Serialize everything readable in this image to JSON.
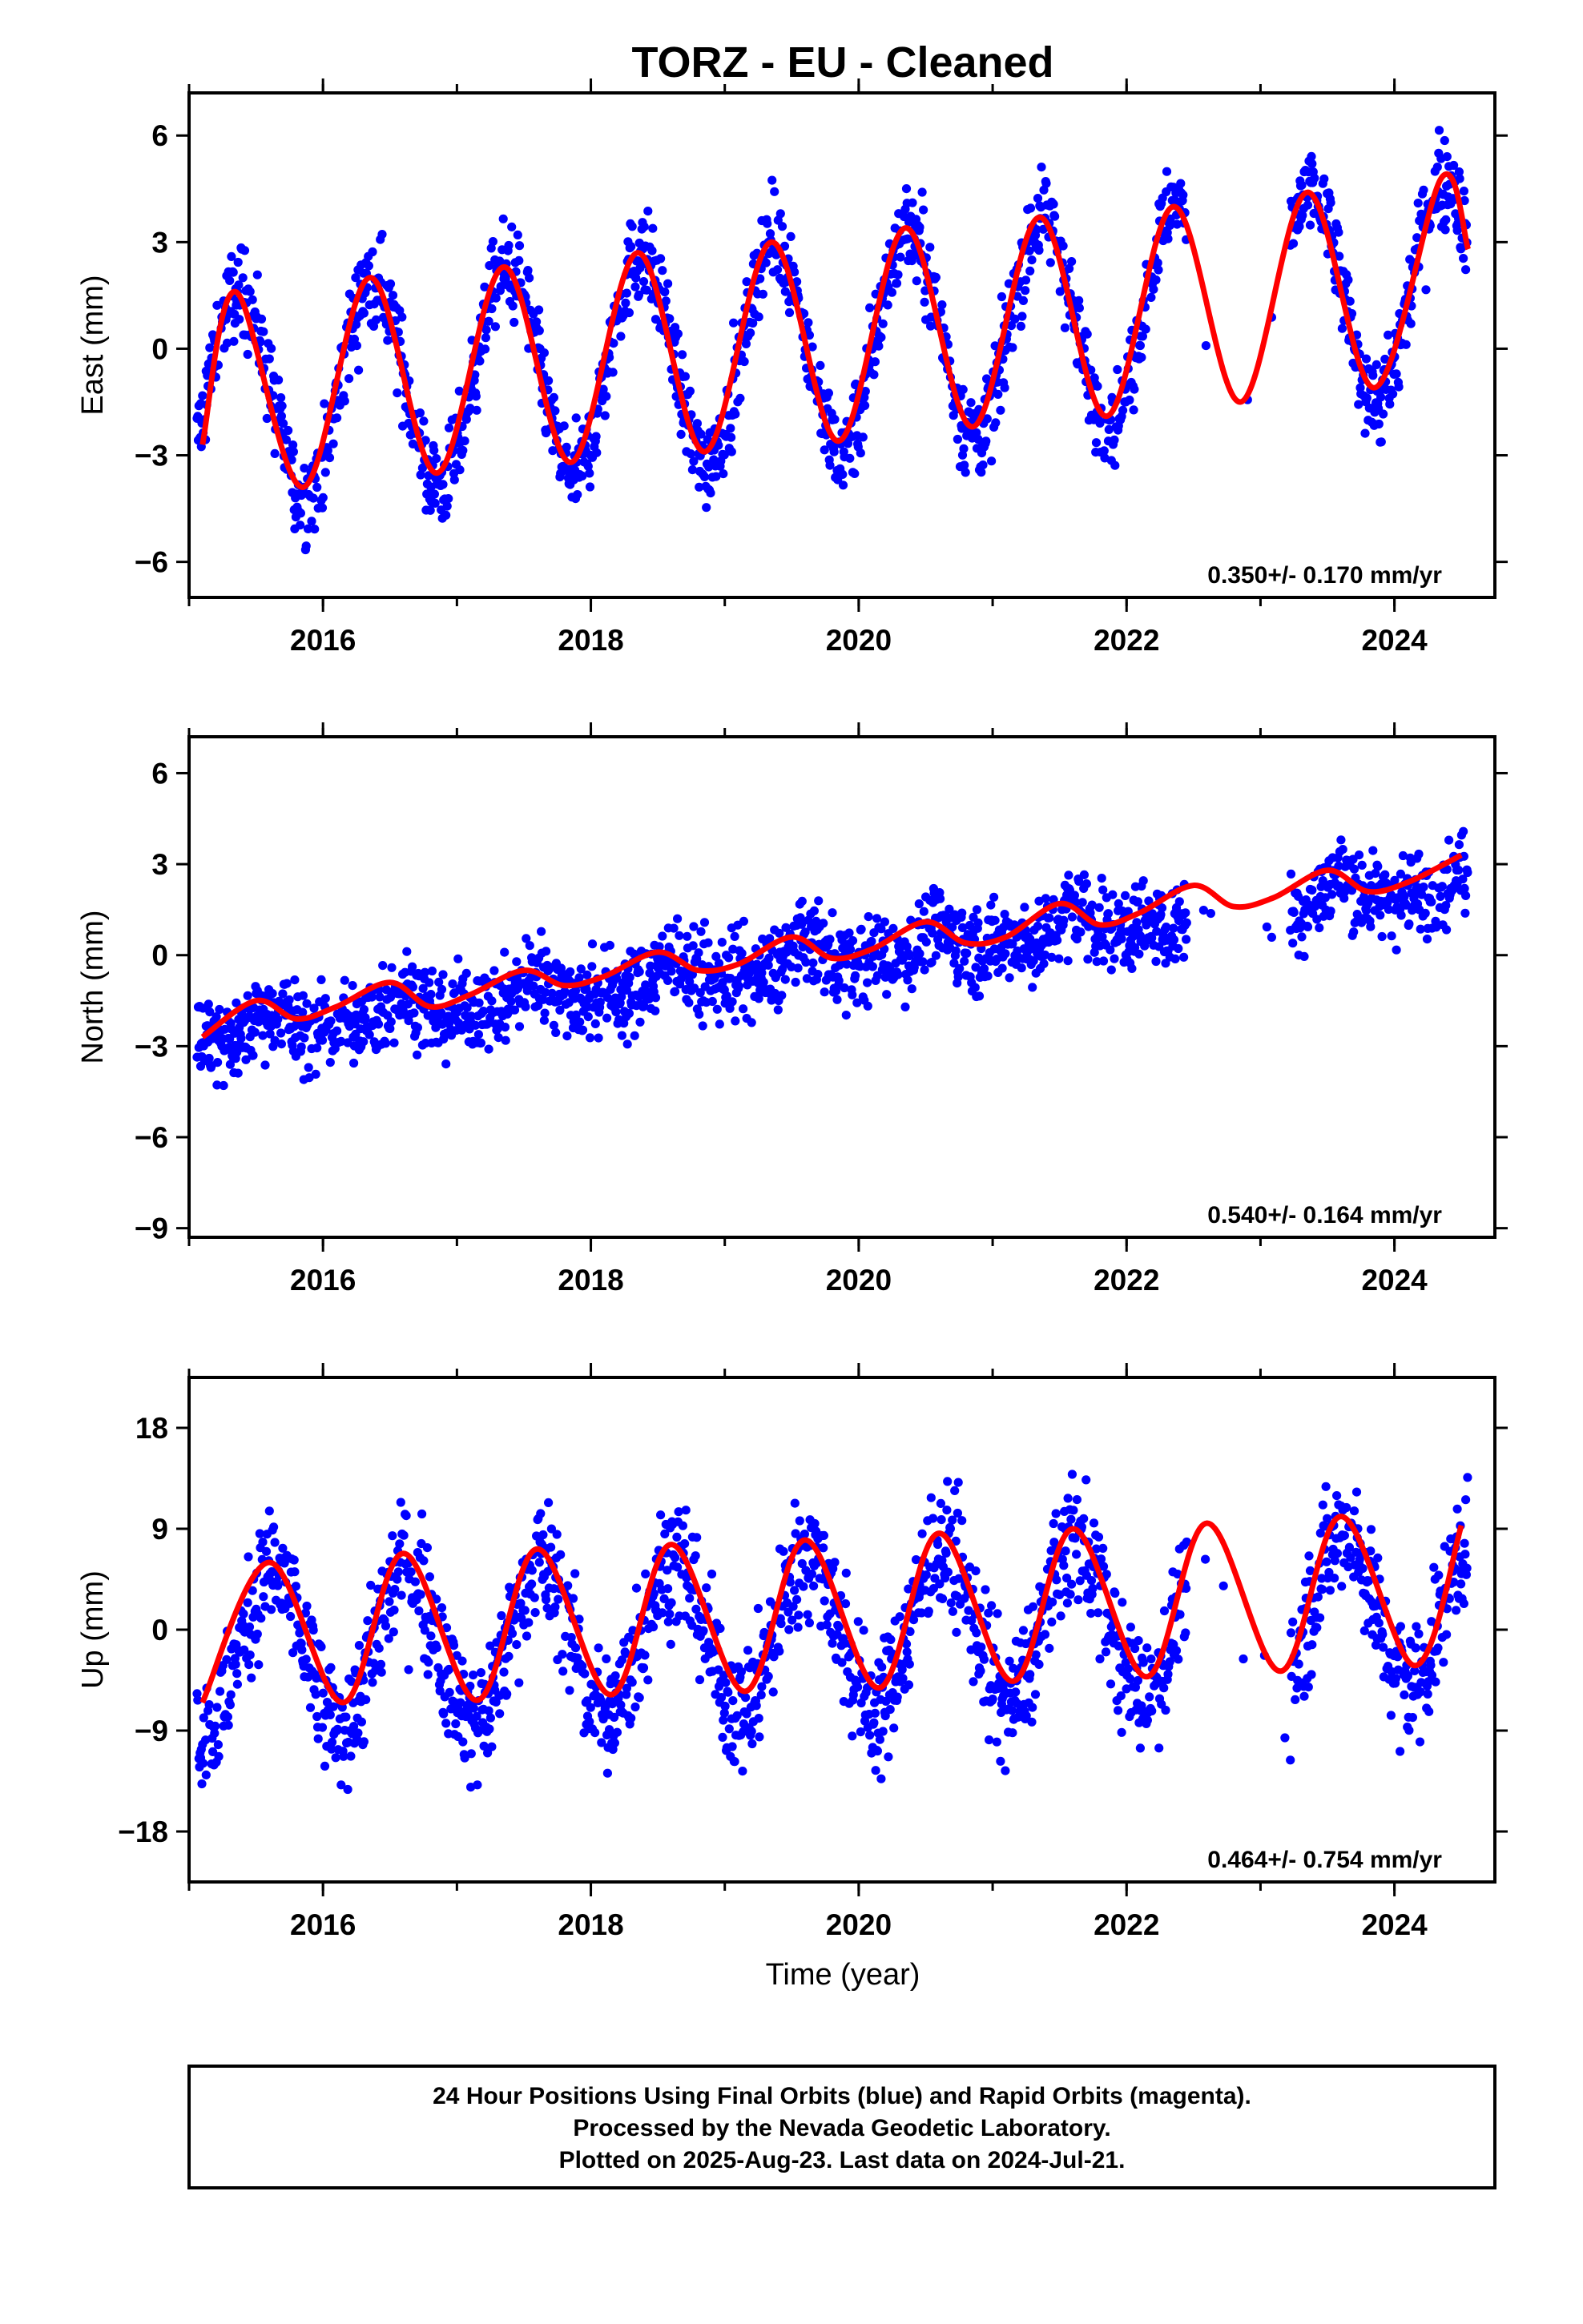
{
  "title": "TORZ  - EU - Cleaned",
  "xlabel": "Time (year)",
  "footer": {
    "line1": "24 Hour Positions Using Final Orbits (blue) and Rapid Orbits (magenta).",
    "line2": "Processed by the Nevada Geodetic Laboratory.",
    "line3": "Plotted on 2025-Aug-23. Last data on 2024-Jul-21."
  },
  "colors": {
    "points": "#0000ff",
    "fit": "#ff0000",
    "axes": "#000000"
  },
  "chart_data": [
    {
      "type": "scatter",
      "ylabel": "East (mm)",
      "xlim": [
        2015.0,
        2024.75
      ],
      "ylim": [
        -7.0,
        7.2
      ],
      "xticks": [
        2016,
        2018,
        2020,
        2022,
        2024
      ],
      "yticks": [
        -6,
        -3,
        0,
        3,
        6
      ],
      "rate_text": "0.350+/- 0.170 mm/yr",
      "model": {
        "rate": 0.35,
        "offset_at_2020": 0.2,
        "annual_amplitude": 3.0,
        "annual_peak": 0.37,
        "semiannual_amplitude": 0.0,
        "noise": 0.9
      },
      "fit": [
        [
          2015.1,
          -2.7
        ],
        [
          2015.35,
          1.6
        ],
        [
          2015.85,
          -3.9
        ],
        [
          2016.35,
          2.0
        ],
        [
          2016.85,
          -3.5
        ],
        [
          2017.35,
          2.3
        ],
        [
          2017.85,
          -3.2
        ],
        [
          2018.35,
          2.7
        ],
        [
          2018.85,
          -2.9
        ],
        [
          2019.35,
          3.0
        ],
        [
          2019.85,
          -2.6
        ],
        [
          2020.35,
          3.4
        ],
        [
          2020.85,
          -2.2
        ],
        [
          2021.35,
          3.7
        ],
        [
          2021.85,
          -1.9
        ],
        [
          2022.35,
          4.0
        ],
        [
          2022.85,
          -1.5
        ],
        [
          2023.35,
          4.4
        ],
        [
          2023.85,
          -1.1
        ],
        [
          2024.35,
          4.8
        ],
        [
          2024.55,
          2.8
        ]
      ]
    },
    {
      "type": "scatter",
      "ylabel": "North (mm)",
      "xlim": [
        2015.0,
        2024.75
      ],
      "ylim": [
        -9.3,
        7.2
      ],
      "xticks": [
        2016,
        2018,
        2020,
        2022,
        2024
      ],
      "yticks": [
        -9,
        -6,
        -3,
        0,
        3,
        6
      ],
      "rate_text": "0.540+/- 0.164 mm/yr",
      "model": {
        "rate": 0.54,
        "offset_at_2020": 0.0,
        "annual_amplitude": 0.4,
        "annual_peak": 0.6,
        "semiannual_amplitude": 0.25,
        "noise": 1.0
      },
      "fit": [
        [
          2015.1,
          -2.7
        ],
        [
          2015.5,
          -1.5
        ],
        [
          2015.8,
          -2.1
        ],
        [
          2016.1,
          -1.7
        ],
        [
          2016.5,
          -0.9
        ],
        [
          2016.8,
          -1.7
        ],
        [
          2017.1,
          -1.3
        ],
        [
          2017.5,
          -0.5
        ],
        [
          2017.8,
          -1.0
        ],
        [
          2018.1,
          -0.7
        ],
        [
          2018.5,
          0.1
        ],
        [
          2018.8,
          -0.5
        ],
        [
          2019.1,
          -0.3
        ],
        [
          2019.5,
          0.6
        ],
        [
          2019.8,
          -0.1
        ],
        [
          2020.1,
          0.2
        ],
        [
          2020.5,
          1.1
        ],
        [
          2020.8,
          0.4
        ],
        [
          2021.1,
          0.6
        ],
        [
          2021.5,
          1.7
        ],
        [
          2021.8,
          1.0
        ],
        [
          2022.1,
          1.4
        ],
        [
          2022.5,
          2.3
        ],
        [
          2022.8,
          1.6
        ],
        [
          2023.1,
          1.9
        ],
        [
          2023.5,
          2.8
        ],
        [
          2023.8,
          2.1
        ],
        [
          2024.1,
          2.4
        ],
        [
          2024.5,
          3.3
        ]
      ]
    },
    {
      "type": "scatter",
      "ylabel": "Up (mm)",
      "xlim": [
        2015.0,
        2024.75
      ],
      "ylim": [
        -22.5,
        22.5
      ],
      "xticks": [
        2016,
        2018,
        2020,
        2022,
        2024
      ],
      "yticks": [
        -18,
        -9,
        0,
        9,
        18
      ],
      "rate_text": "0.464+/- 0.754 mm/yr",
      "model": {
        "rate": 0.464,
        "offset_at_2020": 0.0,
        "annual_amplitude": 7.0,
        "annual_peak": 0.62,
        "semiannual_amplitude": 0.0,
        "noise": 4.0
      },
      "fit": [
        [
          2015.1,
          -6.5
        ],
        [
          2015.6,
          6.0
        ],
        [
          2016.15,
          -6.5
        ],
        [
          2016.6,
          6.8
        ],
        [
          2017.15,
          -6.3
        ],
        [
          2017.6,
          7.2
        ],
        [
          2018.15,
          -5.8
        ],
        [
          2018.6,
          7.6
        ],
        [
          2019.15,
          -5.5
        ],
        [
          2019.6,
          8.0
        ],
        [
          2020.15,
          -5.2
        ],
        [
          2020.6,
          8.6
        ],
        [
          2021.15,
          -4.6
        ],
        [
          2021.6,
          9.0
        ],
        [
          2022.15,
          -4.2
        ],
        [
          2022.6,
          9.5
        ],
        [
          2023.15,
          -3.7
        ],
        [
          2023.6,
          10.1
        ],
        [
          2024.15,
          -3.2
        ],
        [
          2024.5,
          9.3
        ]
      ]
    }
  ]
}
